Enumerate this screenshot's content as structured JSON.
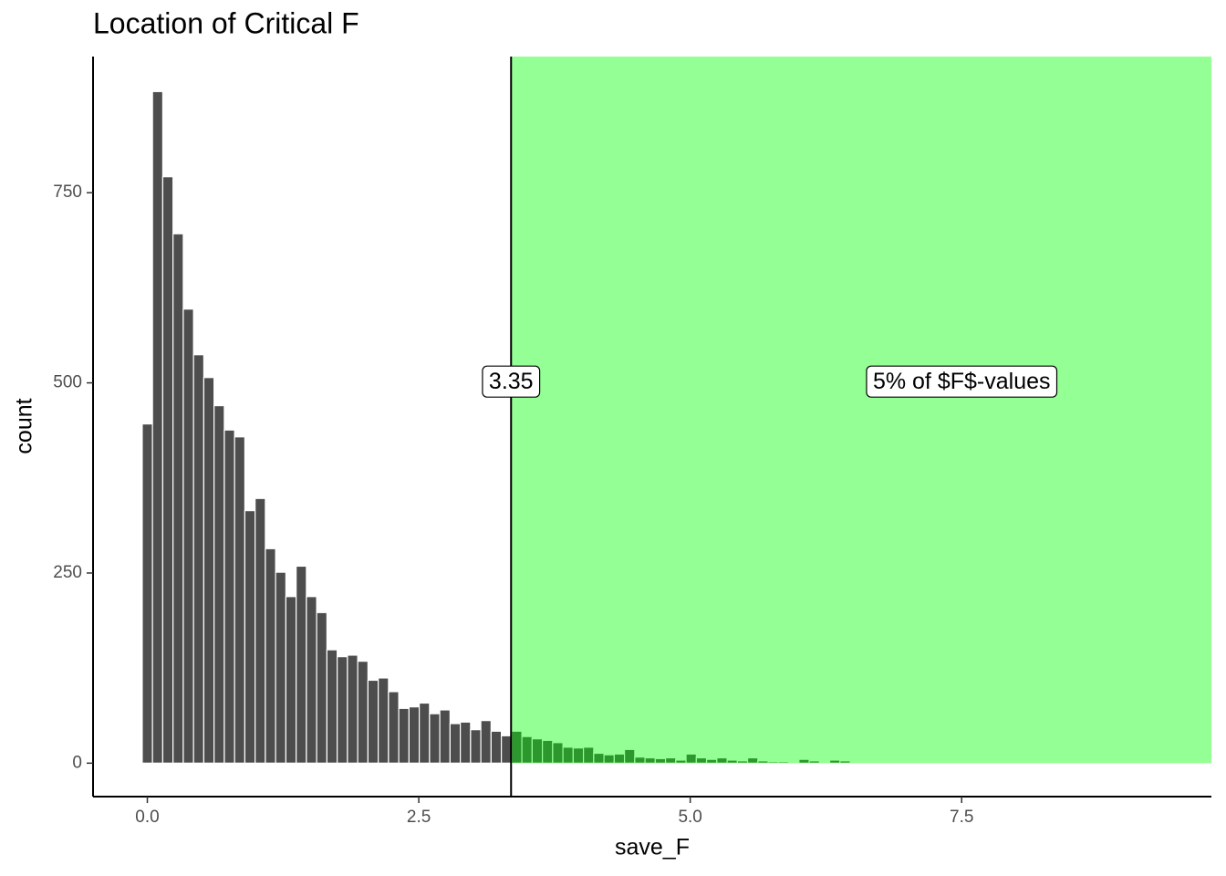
{
  "chart_data": {
    "type": "histogram",
    "title": "Location of Critical F",
    "x_label": "save_F",
    "y_label": "count",
    "bins": [
      -0.047,
      0.0475,
      0.142,
      0.2365,
      0.331,
      0.4255,
      0.52,
      0.6145,
      0.709,
      0.8035,
      0.898,
      0.9925,
      1.087,
      1.1815,
      1.276,
      1.3705,
      1.465,
      1.5595,
      1.654,
      1.7485,
      1.843,
      1.9375,
      2.032,
      2.1265,
      2.221,
      2.3155,
      2.41,
      2.5045,
      2.599,
      2.6935,
      2.788,
      2.8825,
      2.977,
      3.0715,
      3.166,
      3.2605,
      3.355,
      3.4495,
      3.544,
      3.6385,
      3.733,
      3.8275,
      3.922,
      4.0165,
      4.111,
      4.2055,
      4.3,
      4.3945,
      4.489,
      4.5835,
      4.678,
      4.7725,
      4.867,
      4.9615,
      5.056,
      5.1505,
      5.245,
      5.3395,
      5.434,
      5.5285,
      5.623,
      5.7175,
      5.812,
      5.9065,
      6.001,
      6.0955,
      6.19,
      6.2845,
      6.379,
      6.4735,
      6.568,
      6.6625,
      6.757,
      6.8515,
      6.946,
      7.0405,
      7.135,
      7.2295
    ],
    "values": [
      446,
      883,
      771,
      696,
      597,
      537,
      507,
      470,
      438,
      429,
      332,
      348,
      282,
      251,
      219,
      259,
      219,
      198,
      149,
      140,
      142,
      134,
      109,
      112,
      94,
      72,
      74,
      79,
      65,
      70,
      52,
      54,
      44,
      56,
      42,
      36,
      42,
      35,
      32,
      30,
      27,
      21,
      20,
      21,
      13,
      11,
      12,
      18,
      8,
      7,
      6,
      7,
      4,
      12,
      7,
      5,
      7,
      4,
      3,
      7,
      3,
      2,
      2,
      0,
      5,
      3,
      0,
      4,
      3,
      1,
      0,
      0,
      1,
      0,
      0,
      1,
      1
    ],
    "color": "#4d4d4d",
    "xlim": [
      -0.5,
      9.8
    ],
    "ylim": [
      -44,
      929
    ],
    "xticks": [
      {
        "value": 0,
        "label": "0.0"
      },
      2.5,
      {
        "value": 5,
        "label": "5.0"
      },
      7.5
    ],
    "yticks": [
      0,
      250,
      500,
      750
    ],
    "critical_line": {
      "x": 3.35,
      "color": "#000000"
    },
    "shaded_region": {
      "xmin": 3.35,
      "color": "#00ff00",
      "opacity": 0.42
    },
    "annotations": [
      {
        "text": "3.35",
        "x": 3.35,
        "y": 500
      },
      {
        "text": "5% of $F$-values",
        "x": 7.5,
        "y": 500
      }
    ]
  }
}
